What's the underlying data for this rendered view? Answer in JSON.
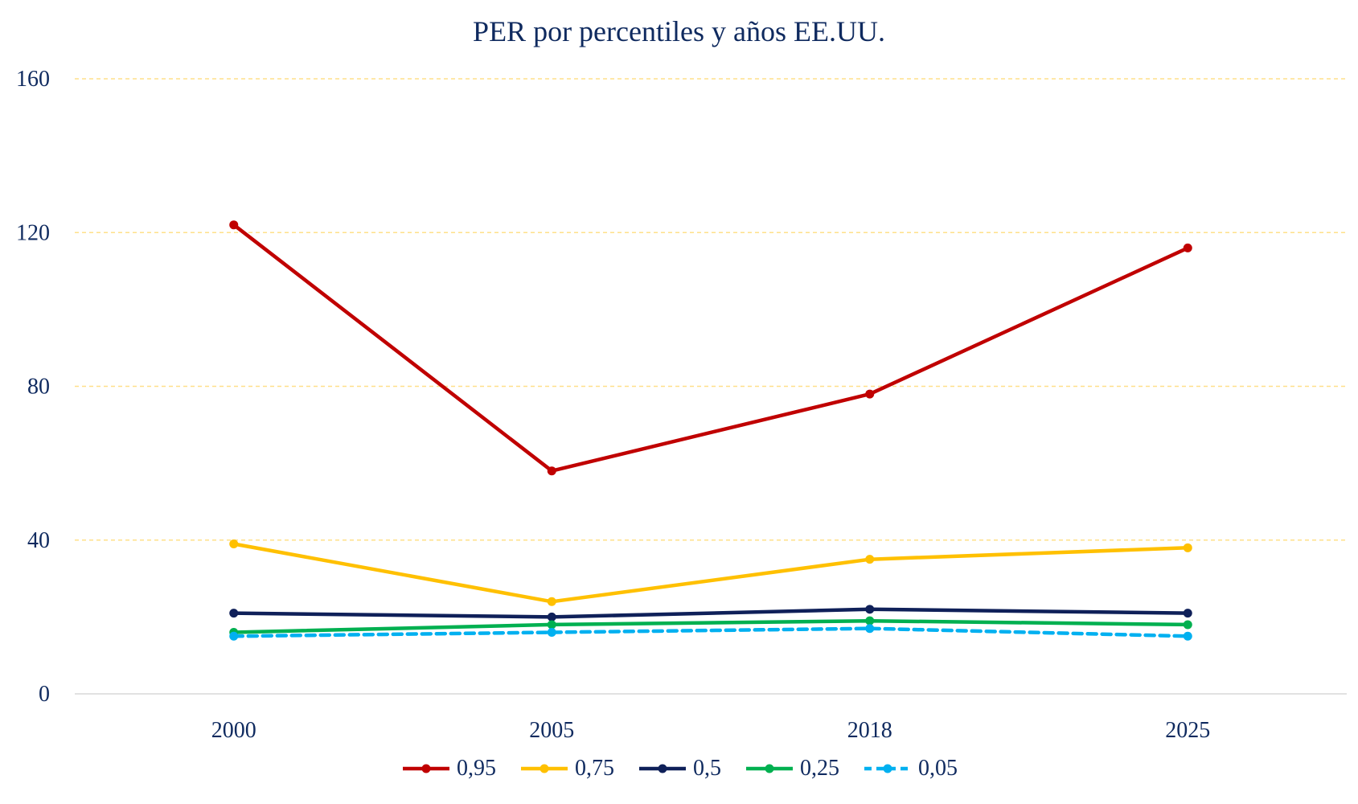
{
  "chart_data": {
    "type": "line",
    "title": "PER por percentiles y años EE.UU.",
    "xlabel": "",
    "ylabel": "",
    "categories": [
      "2000",
      "2005",
      "2018",
      "2025"
    ],
    "ylim": [
      0,
      160
    ],
    "yticks": [
      0,
      40,
      80,
      120,
      160
    ],
    "grid": true,
    "legend_position": "bottom",
    "series": [
      {
        "name": "0,95",
        "values": [
          122,
          58,
          78,
          116
        ],
        "color": "#c00000",
        "dashed": false
      },
      {
        "name": "0,75",
        "values": [
          39,
          24,
          35,
          38
        ],
        "color": "#ffc000",
        "dashed": false
      },
      {
        "name": "0,5",
        "values": [
          21,
          20,
          22,
          21
        ],
        "color": "#0f2059",
        "dashed": false
      },
      {
        "name": "0,25",
        "values": [
          16,
          18,
          19,
          18
        ],
        "color": "#00b050",
        "dashed": false
      },
      {
        "name": "0,05",
        "values": [
          15,
          16,
          17,
          15
        ],
        "color": "#00b0f0",
        "dashed": true
      }
    ]
  }
}
